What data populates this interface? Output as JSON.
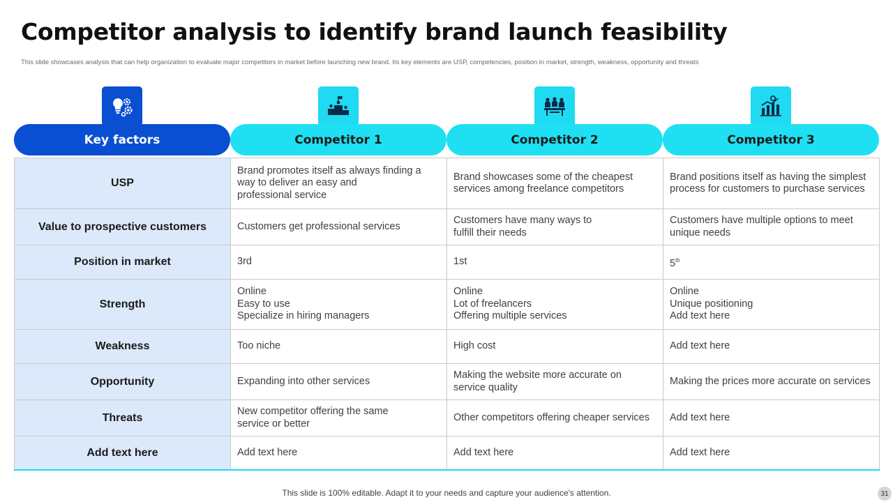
{
  "slide": {
    "title": "Competitor analysis to identify brand launch feasibility",
    "subtitle": "This slide showcases analysis that can help organization to evaluate major competitors in market before launching new brand. Its key elements are USP,  competencies, position in market, strength, weakness, opportunity and threats",
    "footer": "This slide is 100% editable. Adapt it to your needs and capture your audience's attention.",
    "page_number": "31"
  },
  "headers": [
    {
      "label": "Key factors",
      "icon": "lightbulb-gears-icon"
    },
    {
      "label": "Competitor 1",
      "icon": "podium-icon"
    },
    {
      "label": "Competitor 2",
      "icon": "team-meeting-icon"
    },
    {
      "label": "Competitor 3",
      "icon": "growth-chart-icon"
    }
  ],
  "rows": [
    {
      "factor": "USP",
      "c1": [
        "Brand promotes itself as always finding a",
        "way to deliver  an easy and",
        "professional service"
      ],
      "c2": [
        "Brand showcases some of the cheapest",
        "services among freelance competitors"
      ],
      "c3": [
        "Brand positions itself as having the simplest",
        "process for customers to purchase services"
      ]
    },
    {
      "factor": "Value to prospective customers",
      "c1": [
        "Customers get professional services"
      ],
      "c2": [
        "Customers have many ways to",
        "fulfill their needs"
      ],
      "c3": [
        "Customers have multiple options to meet",
        "unique needs"
      ]
    },
    {
      "factor": "Position in market",
      "c1": [
        "3rd"
      ],
      "c2": [
        "1st"
      ],
      "c3": [
        "5"
      ],
      "c3_sup": "th"
    },
    {
      "factor": "Strength",
      "c1": [
        "Online",
        "Easy to use",
        "Specialize in hiring managers"
      ],
      "c2": [
        "Online",
        "Lot of freelancers",
        "Offering multiple services"
      ],
      "c3": [
        "Online",
        "Unique  positioning",
        "Add text here"
      ]
    },
    {
      "factor": "Weakness",
      "c1": [
        "Too niche"
      ],
      "c2": [
        "High cost"
      ],
      "c3": [
        "Add text here"
      ]
    },
    {
      "factor": "Opportunity",
      "c1": [
        "Expanding into other services"
      ],
      "c2": [
        "Making  the website more accurate on",
        "service quality"
      ],
      "c3": [
        "Making  the prices more accurate on services"
      ]
    },
    {
      "factor": "Threats",
      "c1": [
        "New competitor offering the same",
        "service or better"
      ],
      "c2": [
        "Other competitors offering cheaper services"
      ],
      "c3": [
        "Add text here"
      ]
    },
    {
      "factor": "Add text here",
      "c1": [
        "Add text here"
      ],
      "c2": [
        "Add text here"
      ],
      "c3": [
        "Add text here"
      ]
    }
  ],
  "colors": {
    "primary": "#0a4ed1",
    "accent": "#1fe0f2",
    "key_column_bg": "#dce9fb"
  }
}
